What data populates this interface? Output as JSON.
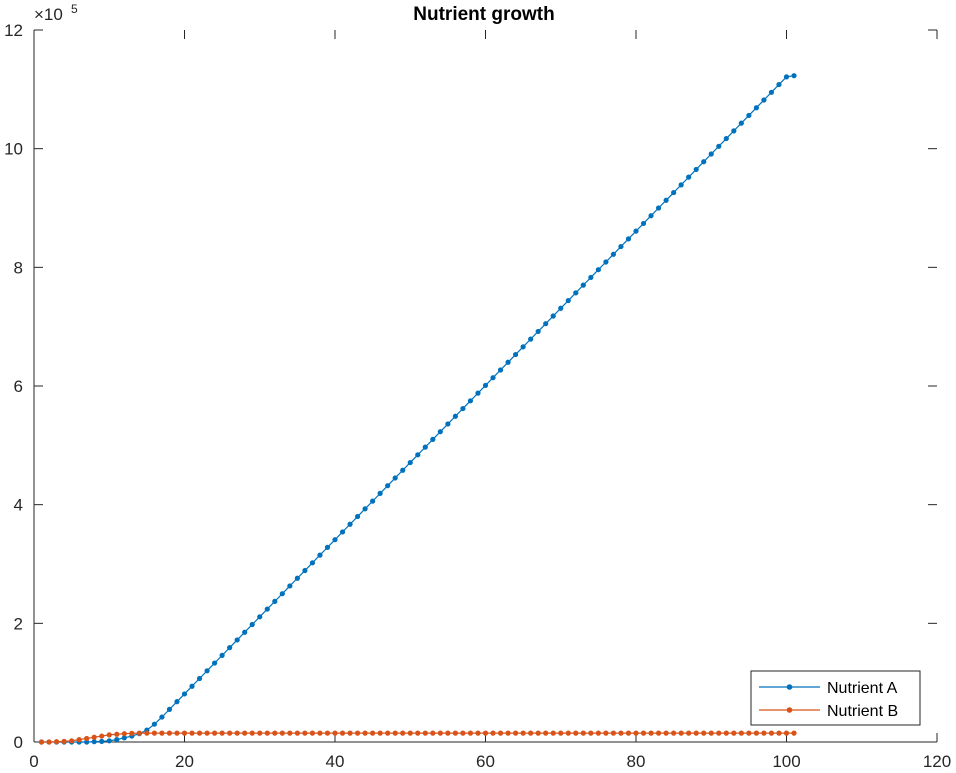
{
  "chart_data": {
    "type": "line",
    "title": "Nutrient growth",
    "xlabel": "",
    "ylabel": "",
    "xlim": [
      0,
      120
    ],
    "ylim": [
      0,
      12
    ],
    "y_multiplier": "×10",
    "y_multiplier_exponent": "5",
    "x_ticks": [
      0,
      20,
      40,
      60,
      80,
      100,
      120
    ],
    "y_ticks": [
      0,
      2,
      4,
      6,
      8,
      10,
      12
    ],
    "x_tick_labels": [
      "0",
      "20",
      "40",
      "60",
      "80",
      "100",
      "120"
    ],
    "y_tick_labels": [
      "0",
      "2",
      "4",
      "6",
      "8",
      "10",
      "12"
    ],
    "grid": false,
    "legend_position": "bottom-right",
    "series": [
      {
        "name": "Nutrient A",
        "color": "#0072BD",
        "marker": "dot",
        "x": [
          1,
          2,
          3,
          4,
          5,
          6,
          7,
          8,
          9,
          10,
          11,
          12,
          13,
          14,
          15,
          16,
          17,
          18,
          19,
          20,
          21,
          22,
          23,
          24,
          25,
          26,
          27,
          28,
          29,
          30,
          31,
          32,
          33,
          34,
          35,
          36,
          37,
          38,
          39,
          40,
          41,
          42,
          43,
          44,
          45,
          46,
          47,
          48,
          49,
          50,
          51,
          52,
          53,
          54,
          55,
          56,
          57,
          58,
          59,
          60,
          61,
          62,
          63,
          64,
          65,
          66,
          67,
          68,
          69,
          70,
          71,
          72,
          73,
          74,
          75,
          76,
          77,
          78,
          79,
          80,
          81,
          82,
          83,
          84,
          85,
          86,
          87,
          88,
          89,
          90,
          91,
          92,
          93,
          94,
          95,
          96,
          97,
          98,
          99,
          100,
          101
        ],
        "y": [
          0,
          0,
          0,
          0,
          0,
          0,
          0,
          0.005,
          0.01,
          0.02,
          0.04,
          0.07,
          0.1,
          0.14,
          0.2,
          0.3,
          0.42,
          0.55,
          0.68,
          0.81,
          0.94,
          1.07,
          1.2,
          1.33,
          1.46,
          1.59,
          1.72,
          1.85,
          1.98,
          2.11,
          2.24,
          2.37,
          2.5,
          2.63,
          2.76,
          2.89,
          3.02,
          3.15,
          3.28,
          3.41,
          3.54,
          3.67,
          3.8,
          3.93,
          4.06,
          4.19,
          4.32,
          4.45,
          4.58,
          4.71,
          4.84,
          4.97,
          5.1,
          5.23,
          5.36,
          5.49,
          5.62,
          5.75,
          5.88,
          6.01,
          6.14,
          6.27,
          6.4,
          6.53,
          6.66,
          6.79,
          6.92,
          7.05,
          7.18,
          7.31,
          7.44,
          7.57,
          7.7,
          7.83,
          7.96,
          8.09,
          8.22,
          8.35,
          8.48,
          8.61,
          8.74,
          8.87,
          9.0,
          9.13,
          9.26,
          9.39,
          9.52,
          9.65,
          9.78,
          9.91,
          10.04,
          10.17,
          10.3,
          10.43,
          10.56,
          10.69,
          10.82,
          10.95,
          11.08,
          11.21,
          11.23
        ]
      },
      {
        "name": "Nutrient B",
        "color": "#D95319",
        "marker": "dot",
        "x": [
          1,
          2,
          3,
          4,
          5,
          6,
          7,
          8,
          9,
          10,
          11,
          12,
          13,
          14,
          15,
          16,
          17,
          18,
          19,
          20,
          21,
          22,
          23,
          24,
          25,
          26,
          27,
          28,
          29,
          30,
          31,
          32,
          33,
          34,
          35,
          36,
          37,
          38,
          39,
          40,
          41,
          42,
          43,
          44,
          45,
          46,
          47,
          48,
          49,
          50,
          51,
          52,
          53,
          54,
          55,
          56,
          57,
          58,
          59,
          60,
          61,
          62,
          63,
          64,
          65,
          66,
          67,
          68,
          69,
          70,
          71,
          72,
          73,
          74,
          75,
          76,
          77,
          78,
          79,
          80,
          81,
          82,
          83,
          84,
          85,
          86,
          87,
          88,
          89,
          90,
          91,
          92,
          93,
          94,
          95,
          96,
          97,
          98,
          99,
          100,
          101
        ],
        "y": [
          0,
          0,
          0.005,
          0.01,
          0.02,
          0.04,
          0.06,
          0.08,
          0.1,
          0.12,
          0.13,
          0.14,
          0.145,
          0.15,
          0.15,
          0.15,
          0.15,
          0.15,
          0.15,
          0.15,
          0.15,
          0.15,
          0.15,
          0.15,
          0.15,
          0.15,
          0.15,
          0.15,
          0.15,
          0.15,
          0.15,
          0.15,
          0.15,
          0.15,
          0.15,
          0.15,
          0.15,
          0.15,
          0.15,
          0.15,
          0.15,
          0.15,
          0.15,
          0.15,
          0.15,
          0.15,
          0.15,
          0.15,
          0.15,
          0.15,
          0.15,
          0.15,
          0.15,
          0.15,
          0.15,
          0.15,
          0.15,
          0.15,
          0.15,
          0.15,
          0.15,
          0.15,
          0.15,
          0.15,
          0.15,
          0.15,
          0.15,
          0.15,
          0.15,
          0.15,
          0.15,
          0.15,
          0.15,
          0.15,
          0.15,
          0.15,
          0.15,
          0.15,
          0.15,
          0.15,
          0.15,
          0.15,
          0.15,
          0.15,
          0.15,
          0.15,
          0.15,
          0.15,
          0.15,
          0.15,
          0.15,
          0.15,
          0.15,
          0.15,
          0.15,
          0.15,
          0.15,
          0.15,
          0.15,
          0.15,
          0.15
        ]
      }
    ]
  }
}
